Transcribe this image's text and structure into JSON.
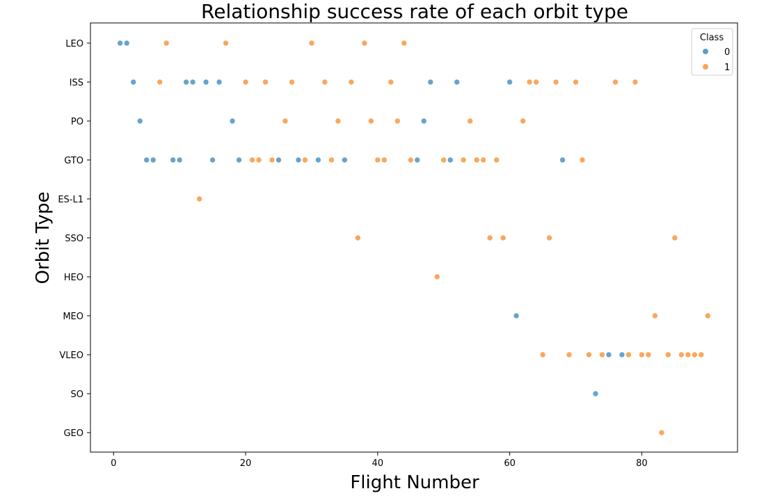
{
  "chart_data": {
    "type": "scatter",
    "title": "Relationship success rate of each orbit type",
    "xlabel": "Flight Number",
    "ylabel": "Orbit Type",
    "xlim": [
      -3.5,
      94.5
    ],
    "x_ticks": [
      0,
      20,
      40,
      60,
      80
    ],
    "categories": [
      "LEO",
      "ISS",
      "PO",
      "GTO",
      "ES-L1",
      "SSO",
      "HEO",
      "MEO",
      "VLEO",
      "SO",
      "GEO"
    ],
    "grid": false,
    "legend": {
      "title": "Class",
      "placement": "top-right",
      "entries": [
        "0",
        "1"
      ]
    },
    "colors": {
      "0": "#5f9ec9",
      "1": "#f9a252"
    },
    "series": [
      {
        "name": "0",
        "points": [
          [
            1,
            "LEO"
          ],
          [
            2,
            "LEO"
          ],
          [
            3,
            "ISS"
          ],
          [
            11,
            "ISS"
          ],
          [
            12,
            "ISS"
          ],
          [
            14,
            "ISS"
          ],
          [
            16,
            "ISS"
          ],
          [
            48,
            "ISS"
          ],
          [
            52,
            "ISS"
          ],
          [
            60,
            "ISS"
          ],
          [
            4,
            "PO"
          ],
          [
            18,
            "PO"
          ],
          [
            47,
            "PO"
          ],
          [
            5,
            "GTO"
          ],
          [
            6,
            "GTO"
          ],
          [
            9,
            "GTO"
          ],
          [
            10,
            "GTO"
          ],
          [
            15,
            "GTO"
          ],
          [
            19,
            "GTO"
          ],
          [
            25,
            "GTO"
          ],
          [
            28,
            "GTO"
          ],
          [
            31,
            "GTO"
          ],
          [
            35,
            "GTO"
          ],
          [
            46,
            "GTO"
          ],
          [
            51,
            "GTO"
          ],
          [
            68,
            "GTO"
          ],
          [
            61,
            "MEO"
          ],
          [
            75,
            "VLEO"
          ],
          [
            77,
            "VLEO"
          ],
          [
            73,
            "SO"
          ]
        ]
      },
      {
        "name": "1",
        "points": [
          [
            8,
            "LEO"
          ],
          [
            17,
            "LEO"
          ],
          [
            30,
            "LEO"
          ],
          [
            38,
            "LEO"
          ],
          [
            44,
            "LEO"
          ],
          [
            7,
            "ISS"
          ],
          [
            20,
            "ISS"
          ],
          [
            23,
            "ISS"
          ],
          [
            27,
            "ISS"
          ],
          [
            32,
            "ISS"
          ],
          [
            36,
            "ISS"
          ],
          [
            42,
            "ISS"
          ],
          [
            63,
            "ISS"
          ],
          [
            64,
            "ISS"
          ],
          [
            67,
            "ISS"
          ],
          [
            70,
            "ISS"
          ],
          [
            76,
            "ISS"
          ],
          [
            79,
            "ISS"
          ],
          [
            26,
            "PO"
          ],
          [
            34,
            "PO"
          ],
          [
            39,
            "PO"
          ],
          [
            43,
            "PO"
          ],
          [
            54,
            "PO"
          ],
          [
            62,
            "PO"
          ],
          [
            21,
            "GTO"
          ],
          [
            22,
            "GTO"
          ],
          [
            24,
            "GTO"
          ],
          [
            29,
            "GTO"
          ],
          [
            33,
            "GTO"
          ],
          [
            40,
            "GTO"
          ],
          [
            41,
            "GTO"
          ],
          [
            45,
            "GTO"
          ],
          [
            50,
            "GTO"
          ],
          [
            53,
            "GTO"
          ],
          [
            55,
            "GTO"
          ],
          [
            56,
            "GTO"
          ],
          [
            58,
            "GTO"
          ],
          [
            71,
            "GTO"
          ],
          [
            13,
            "ES-L1"
          ],
          [
            37,
            "SSO"
          ],
          [
            57,
            "SSO"
          ],
          [
            59,
            "SSO"
          ],
          [
            66,
            "SSO"
          ],
          [
            85,
            "SSO"
          ],
          [
            49,
            "HEO"
          ],
          [
            82,
            "MEO"
          ],
          [
            90,
            "MEO"
          ],
          [
            65,
            "VLEO"
          ],
          [
            69,
            "VLEO"
          ],
          [
            72,
            "VLEO"
          ],
          [
            74,
            "VLEO"
          ],
          [
            78,
            "VLEO"
          ],
          [
            80,
            "VLEO"
          ],
          [
            81,
            "VLEO"
          ],
          [
            84,
            "VLEO"
          ],
          [
            86,
            "VLEO"
          ],
          [
            87,
            "VLEO"
          ],
          [
            88,
            "VLEO"
          ],
          [
            89,
            "VLEO"
          ],
          [
            83,
            "GEO"
          ]
        ]
      }
    ]
  }
}
